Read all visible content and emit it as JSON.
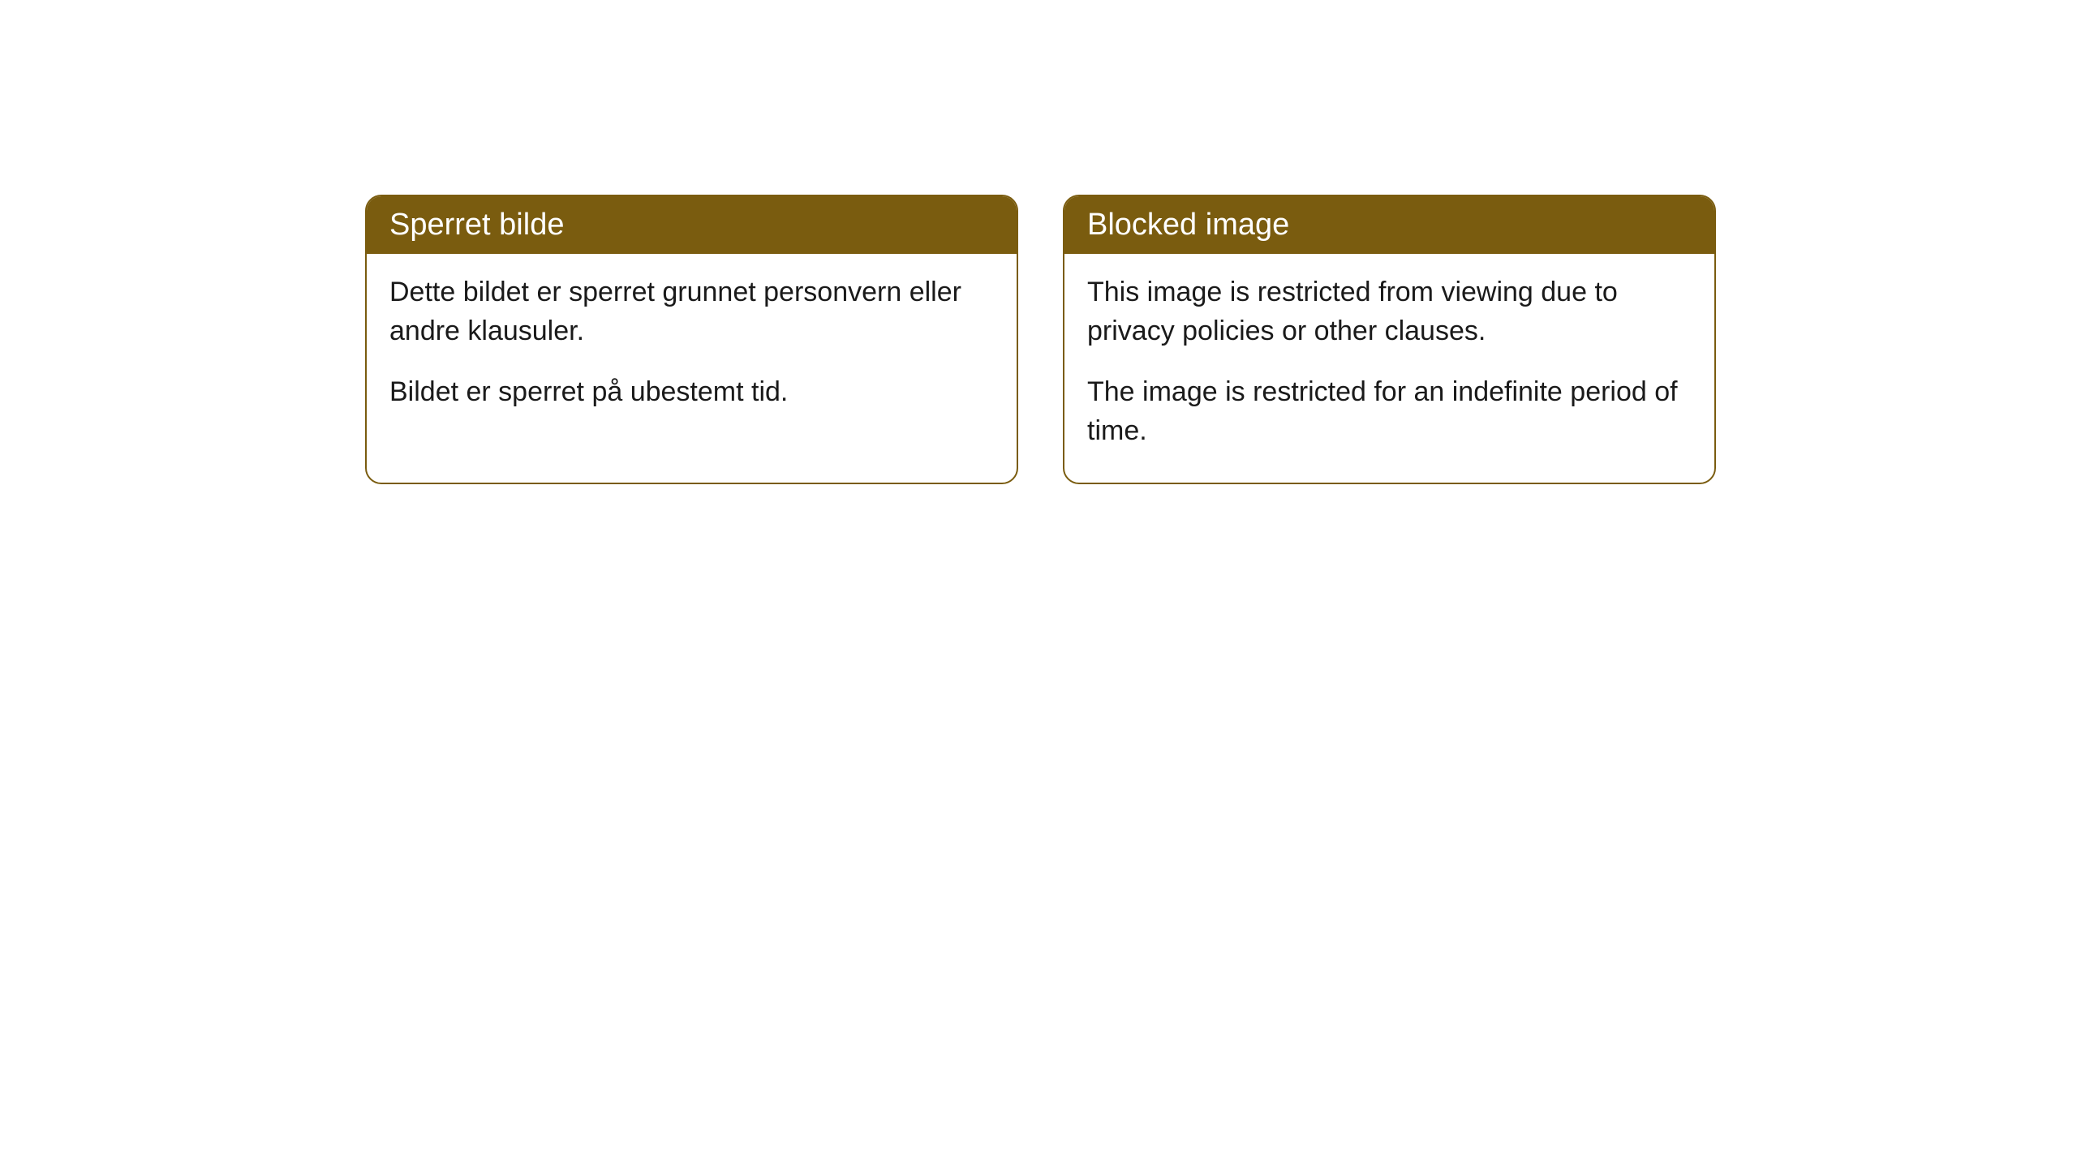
{
  "cards": [
    {
      "title": "Sperret bilde",
      "paragraph1": "Dette bildet er sperret grunnet personvern eller andre klausuler.",
      "paragraph2": "Bildet er sperret på ubestemt tid."
    },
    {
      "title": "Blocked image",
      "paragraph1": "This image is restricted from viewing due to privacy policies or other clauses.",
      "paragraph2": "The image is restricted for an indefinite period of time."
    }
  ],
  "styling": {
    "header_background": "#7a5c0f",
    "header_text_color": "#ffffff",
    "border_color": "#7a5c0f",
    "body_background": "#ffffff",
    "body_text_color": "#1a1a1a",
    "border_radius": 20,
    "header_font_size": 38,
    "body_font_size": 34
  }
}
